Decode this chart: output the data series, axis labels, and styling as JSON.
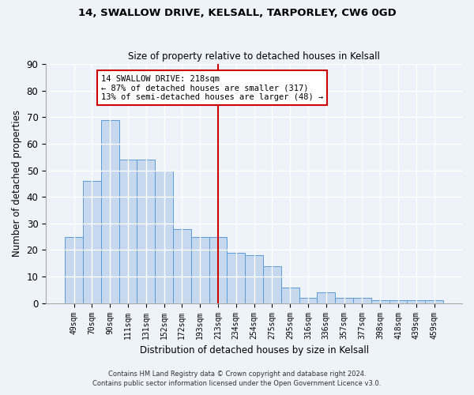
{
  "title_line1": "14, SWALLOW DRIVE, KELSALL, TARPORLEY, CW6 0GD",
  "title_line2": "Size of property relative to detached houses in Kelsall",
  "xlabel": "Distribution of detached houses by size in Kelsall",
  "ylabel": "Number of detached properties",
  "categories": [
    "49sqm",
    "70sqm",
    "90sqm",
    "111sqm",
    "131sqm",
    "152sqm",
    "172sqm",
    "193sqm",
    "213sqm",
    "234sqm",
    "254sqm",
    "275sqm",
    "295sqm",
    "316sqm",
    "336sqm",
    "357sqm",
    "377sqm",
    "398sqm",
    "418sqm",
    "439sqm",
    "459sqm"
  ],
  "values": [
    25,
    46,
    69,
    54,
    54,
    50,
    28,
    25,
    25,
    19,
    18,
    14,
    6,
    2,
    4,
    2,
    2,
    1,
    1,
    1,
    1
  ],
  "bar_color": "#c5d8ed",
  "bar_edge_color": "#5b9bd5",
  "vline_x_index": 8,
  "vline_color": "#cc0000",
  "annotation_text_line1": "14 SWALLOW DRIVE: 218sqm",
  "annotation_text_line2": "← 87% of detached houses are smaller (317)",
  "annotation_text_line3": "13% of semi-detached houses are larger (48) →",
  "annotation_box_color": "#ffffff",
  "annotation_box_edge": "#cc0000",
  "ylim": [
    0,
    90
  ],
  "yticks": [
    0,
    10,
    20,
    30,
    40,
    50,
    60,
    70,
    80,
    90
  ],
  "background_color": "#eef2f9",
  "grid_color": "#ffffff",
  "footer_line1": "Contains HM Land Registry data © Crown copyright and database right 2024.",
  "footer_line2": "Contains public sector information licensed under the Open Government Licence v3.0."
}
